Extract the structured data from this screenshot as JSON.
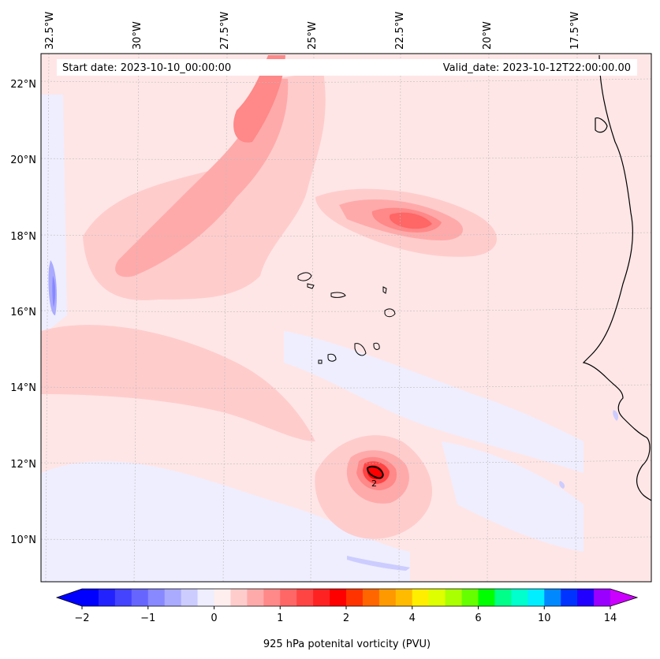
{
  "header": {
    "start_date": "Start date: 2023-10-10_00:00:00",
    "valid_date": "Valid_date: 2023-10-12T22:00:00.00"
  },
  "map": {
    "lon_labels": [
      "32.5°W",
      "30°W",
      "27.5°W",
      "25°W",
      "22.5°W",
      "20°W",
      "17.5°W"
    ],
    "lat_labels": [
      "22°N",
      "20°N",
      "18°N",
      "16°N",
      "14°N",
      "12°N",
      "10°N"
    ],
    "contour_label": "2"
  },
  "colorbar": {
    "tick_labels": [
      "−2",
      "−1",
      "0",
      "1",
      "2",
      "4",
      "6",
      "10",
      "14"
    ],
    "label": "925 hPa potenital vorticity (PVU)",
    "colors": [
      "#0000ff",
      "#2222ff",
      "#4444ff",
      "#6666ff",
      "#8888ff",
      "#aaaaff",
      "#ccccff",
      "#eeeeff",
      "#ffeeee",
      "#ffcccc",
      "#ffaaaa",
      "#ff8888",
      "#ff6666",
      "#ff4444",
      "#ff2222",
      "#ff0000",
      "#ff3300",
      "#ff6600",
      "#ff9900",
      "#ffbb00",
      "#ffee00",
      "#ddff00",
      "#aaff00",
      "#66ff00",
      "#00ff00",
      "#00ff88",
      "#00ffcc",
      "#00eeff",
      "#0088ff",
      "#0033ff",
      "#2200ff",
      "#9900ff"
    ],
    "extend_min_color": "#0000ff",
    "extend_max_color": "#cc00ff"
  }
}
